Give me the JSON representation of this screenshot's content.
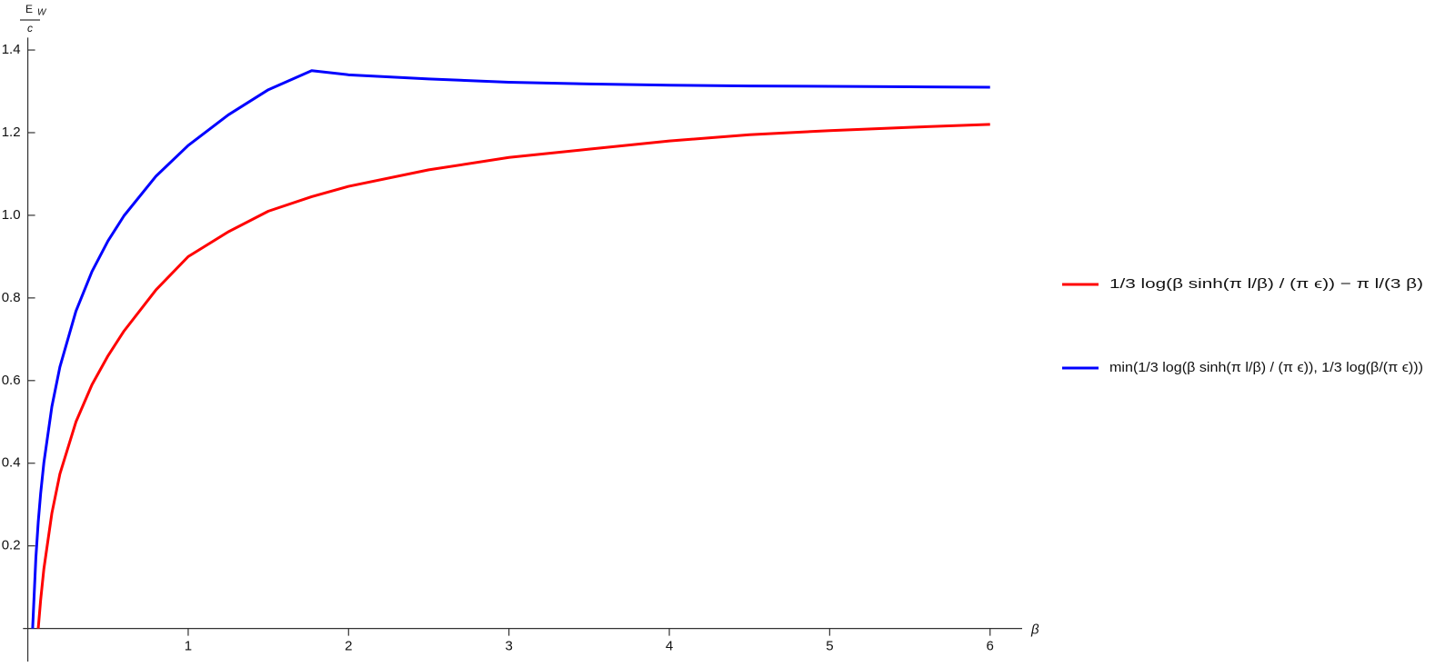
{
  "chart_data": {
    "type": "line",
    "xlabel": "β",
    "ylabel_numerator": "E",
    "ylabel_subscript": "W",
    "ylabel_denominator": "c",
    "x": [
      0.03,
      0.05,
      0.065,
      0.08,
      0.1,
      0.15,
      0.2,
      0.3,
      0.4,
      0.5,
      0.6,
      0.8,
      1,
      1.25,
      1.5,
      1.77,
      2,
      2.5,
      3,
      3.5,
      4,
      4.5,
      5,
      5.5,
      6
    ],
    "series": [
      {
        "name": "1/3 log(β sinh(π l/β) / (π ϵ)) − π l/(3 β)",
        "color": "#ff0000",
        "values": [
          null,
          null,
          0,
          0.069,
          0.144,
          0.279,
          0.374,
          0.5,
          0.59,
          0.66,
          0.72,
          0.82,
          0.9,
          0.96,
          1.01,
          1.045,
          1.07,
          1.11,
          1.14,
          1.16,
          1.18,
          1.195,
          1.205,
          1.213,
          1.22
        ]
      },
      {
        "name": "min(1/3 log(β sinh(π l/β) / (π ϵ)), 1/3 log(β/(π ϵ)))",
        "color": "#0000ff",
        "values": [
          0,
          0.17,
          0.258,
          0.327,
          0.401,
          0.537,
          0.633,
          0.768,
          0.864,
          0.938,
          0.999,
          1.095,
          1.169,
          1.243,
          1.304,
          1.35,
          1.34,
          1.33,
          1.322,
          1.318,
          1.315,
          1.313,
          1.312,
          1.311,
          1.31
        ]
      }
    ],
    "xlim": [
      -0.03,
      6.2
    ],
    "ylim": [
      -0.08,
      1.43
    ],
    "xticks": [
      1,
      2,
      3,
      4,
      5,
      6
    ],
    "yticks": [
      0.2,
      0.4,
      0.6,
      0.8,
      {
        "value": 1,
        "label": "1.0"
      },
      1.2,
      1.4
    ],
    "grid": false,
    "legend": "right"
  }
}
